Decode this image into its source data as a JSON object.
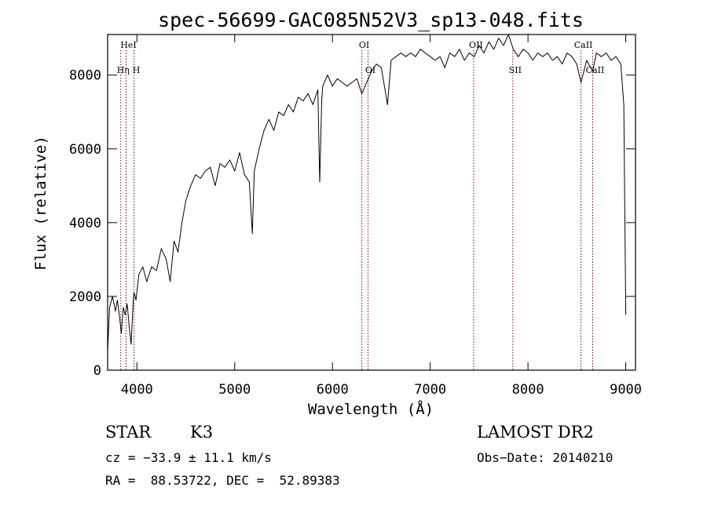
{
  "chart_data": {
    "type": "line",
    "title": "spec-56699-GAC085N52V3_sp13-048.fits",
    "xlabel": "Wavelength (Å)",
    "ylabel": "Flux (relative)",
    "xlim": [
      3700,
      9100
    ],
    "ylim": [
      0,
      9100
    ],
    "xticks": [
      4000,
      5000,
      6000,
      7000,
      8000,
      9000
    ],
    "yticks": [
      0,
      2000,
      4000,
      6000,
      8000
    ],
    "grid": false,
    "line_color": "#000000",
    "marker_color": "#8b0000",
    "series": [
      {
        "x": [
          3700,
          3720,
          3750,
          3780,
          3800,
          3820,
          3840,
          3860,
          3880,
          3900,
          3920,
          3940,
          3960,
          3970,
          3990,
          4020,
          4060,
          4100,
          4150,
          4200,
          4250,
          4300,
          4340,
          4380,
          4420,
          4460,
          4500,
          4550,
          4600,
          4650,
          4700,
          4750,
          4800,
          4850,
          4900,
          4950,
          5000,
          5050,
          5100,
          5150,
          5180,
          5200,
          5250,
          5300,
          5350,
          5400,
          5450,
          5500,
          5550,
          5600,
          5650,
          5700,
          5750,
          5800,
          5850,
          5870,
          5890,
          5900,
          5950,
          6000,
          6050,
          6100,
          6150,
          6200,
          6250,
          6300,
          6350,
          6400,
          6450,
          6500,
          6563,
          6600,
          6650,
          6700,
          6750,
          6800,
          6850,
          6900,
          6950,
          7000,
          7050,
          7100,
          7150,
          7200,
          7250,
          7300,
          7350,
          7400,
          7450,
          7500,
          7550,
          7600,
          7650,
          7700,
          7750,
          7800,
          7850,
          7900,
          7950,
          8000,
          8050,
          8100,
          8150,
          8200,
          8250,
          8300,
          8350,
          8400,
          8450,
          8498,
          8542,
          8600,
          8662,
          8700,
          8750,
          8800,
          8850,
          8900,
          8950,
          8980,
          9000
        ],
        "y": [
          500,
          1700,
          2000,
          1600,
          1900,
          1500,
          1000,
          1700,
          1500,
          1800,
          1200,
          700,
          1800,
          2100,
          1900,
          2600,
          2800,
          2400,
          2800,
          2700,
          3300,
          3000,
          2400,
          3500,
          3200,
          4000,
          4600,
          5000,
          5300,
          5200,
          5400,
          5500,
          5000,
          5600,
          5500,
          5700,
          5400,
          5900,
          5300,
          5100,
          3700,
          5400,
          6000,
          6500,
          6800,
          6500,
          7000,
          6900,
          7200,
          7000,
          7400,
          7300,
          7500,
          7200,
          7600,
          5100,
          7300,
          7700,
          8000,
          7700,
          7900,
          7800,
          7700,
          7800,
          7900,
          7500,
          7800,
          8100,
          8300,
          8200,
          7200,
          8400,
          8500,
          8600,
          8500,
          8600,
          8500,
          8700,
          8600,
          8500,
          8400,
          8500,
          8200,
          8600,
          8500,
          8700,
          8400,
          8600,
          8500,
          8800,
          8600,
          8900,
          8700,
          9000,
          8800,
          9100,
          8700,
          8500,
          8700,
          8600,
          8400,
          8600,
          8500,
          8600,
          8400,
          8500,
          8300,
          8600,
          8500,
          8300,
          7800,
          8400,
          8100,
          8600,
          8500,
          8600,
          8400,
          8500,
          8300,
          7200,
          1500
        ]
      }
    ],
    "lines": [
      {
        "label": "Hη",
        "x": 3835
      },
      {
        "label": "HeI",
        "x": 3889
      },
      {
        "label": "H",
        "x": 3970
      },
      {
        "label": "OI",
        "x": 6300
      },
      {
        "label": "OI",
        "x": 6364
      },
      {
        "label": "OII",
        "x": 7444
      },
      {
        "label": "SII",
        "x": 7845
      },
      {
        "label": "CaII",
        "x": 8542
      },
      {
        "label": "CaII",
        "x": 8662
      }
    ]
  },
  "info": {
    "object_class": "STAR",
    "subclass": "K3",
    "survey": "LAMOST DR2",
    "cz": "cz = −33.9 ± 11.1 km/s",
    "obs_date": "Obs−Date: 20140210",
    "coords": "RA =  88.53722, DEC =  52.89383"
  }
}
